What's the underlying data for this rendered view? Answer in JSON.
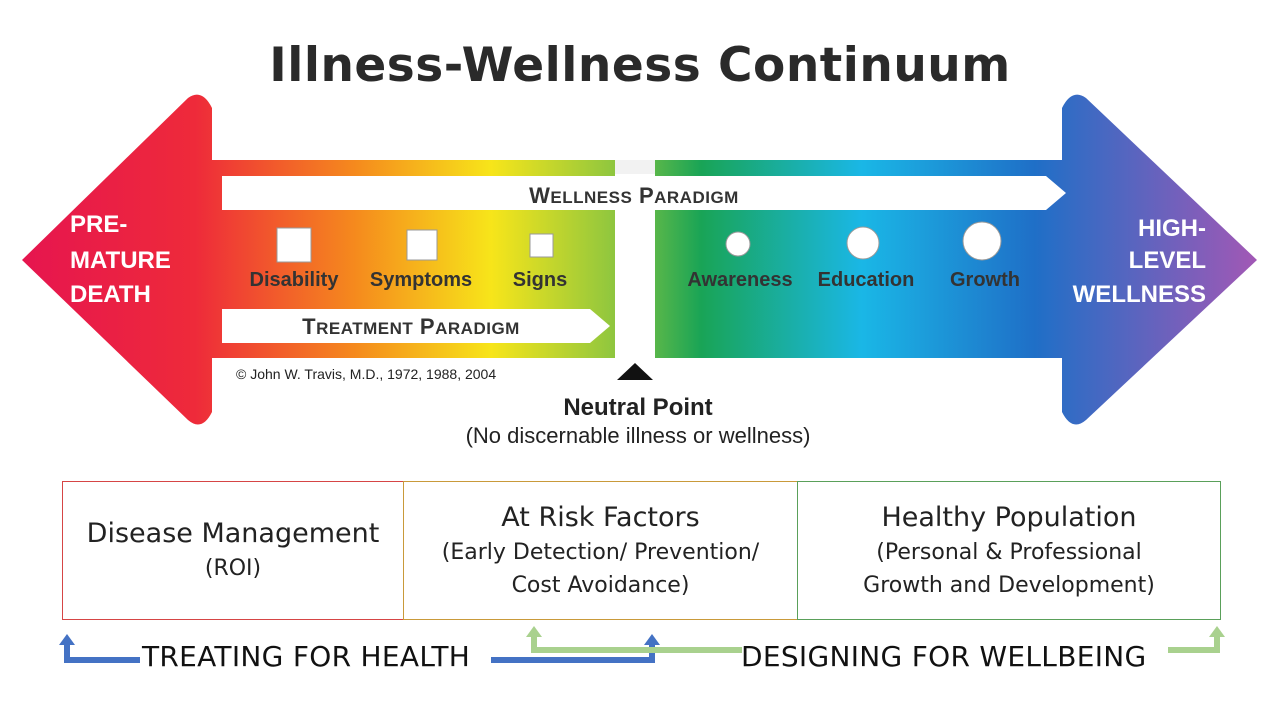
{
  "title": "Illness-Wellness Continuum",
  "continuum": {
    "left_label": [
      "PRE-",
      "MATURE",
      "DEATH"
    ],
    "right_label": [
      "HIGH-",
      "LEVEL",
      "WELLNESS"
    ],
    "wellness_paradigm": "Wellness Paradigm",
    "treatment_paradigm": "Treatment Paradigm",
    "illness_stages": [
      "Disability",
      "Symptoms",
      "Signs"
    ],
    "wellness_stages": [
      "Awareness",
      "Education",
      "Growth"
    ],
    "copyright": "© John W. Travis, M.D., 1972, 1988, 2004",
    "neutral_point": "Neutral Point",
    "neutral_point_sub": "(No discernable illness or wellness)"
  },
  "categories": [
    {
      "heading": "Disease Management",
      "lines": [
        "(ROI)"
      ],
      "color": "#d64545"
    },
    {
      "heading": "At Risk Factors",
      "lines": [
        "(Early Detection/ Prevention/",
        "Cost Avoidance)"
      ],
      "color": "#c99a3a"
    },
    {
      "heading": "Healthy Population",
      "lines": [
        "(Personal & Professional",
        "Growth and Development)"
      ],
      "color": "#5aa05a"
    }
  ],
  "bottom": {
    "treating": "TREATING FOR HEALTH",
    "designing": "DESIGNING FOR WELLBEING",
    "treating_color": "#4472c4",
    "designing_color": "#a9d18e"
  }
}
